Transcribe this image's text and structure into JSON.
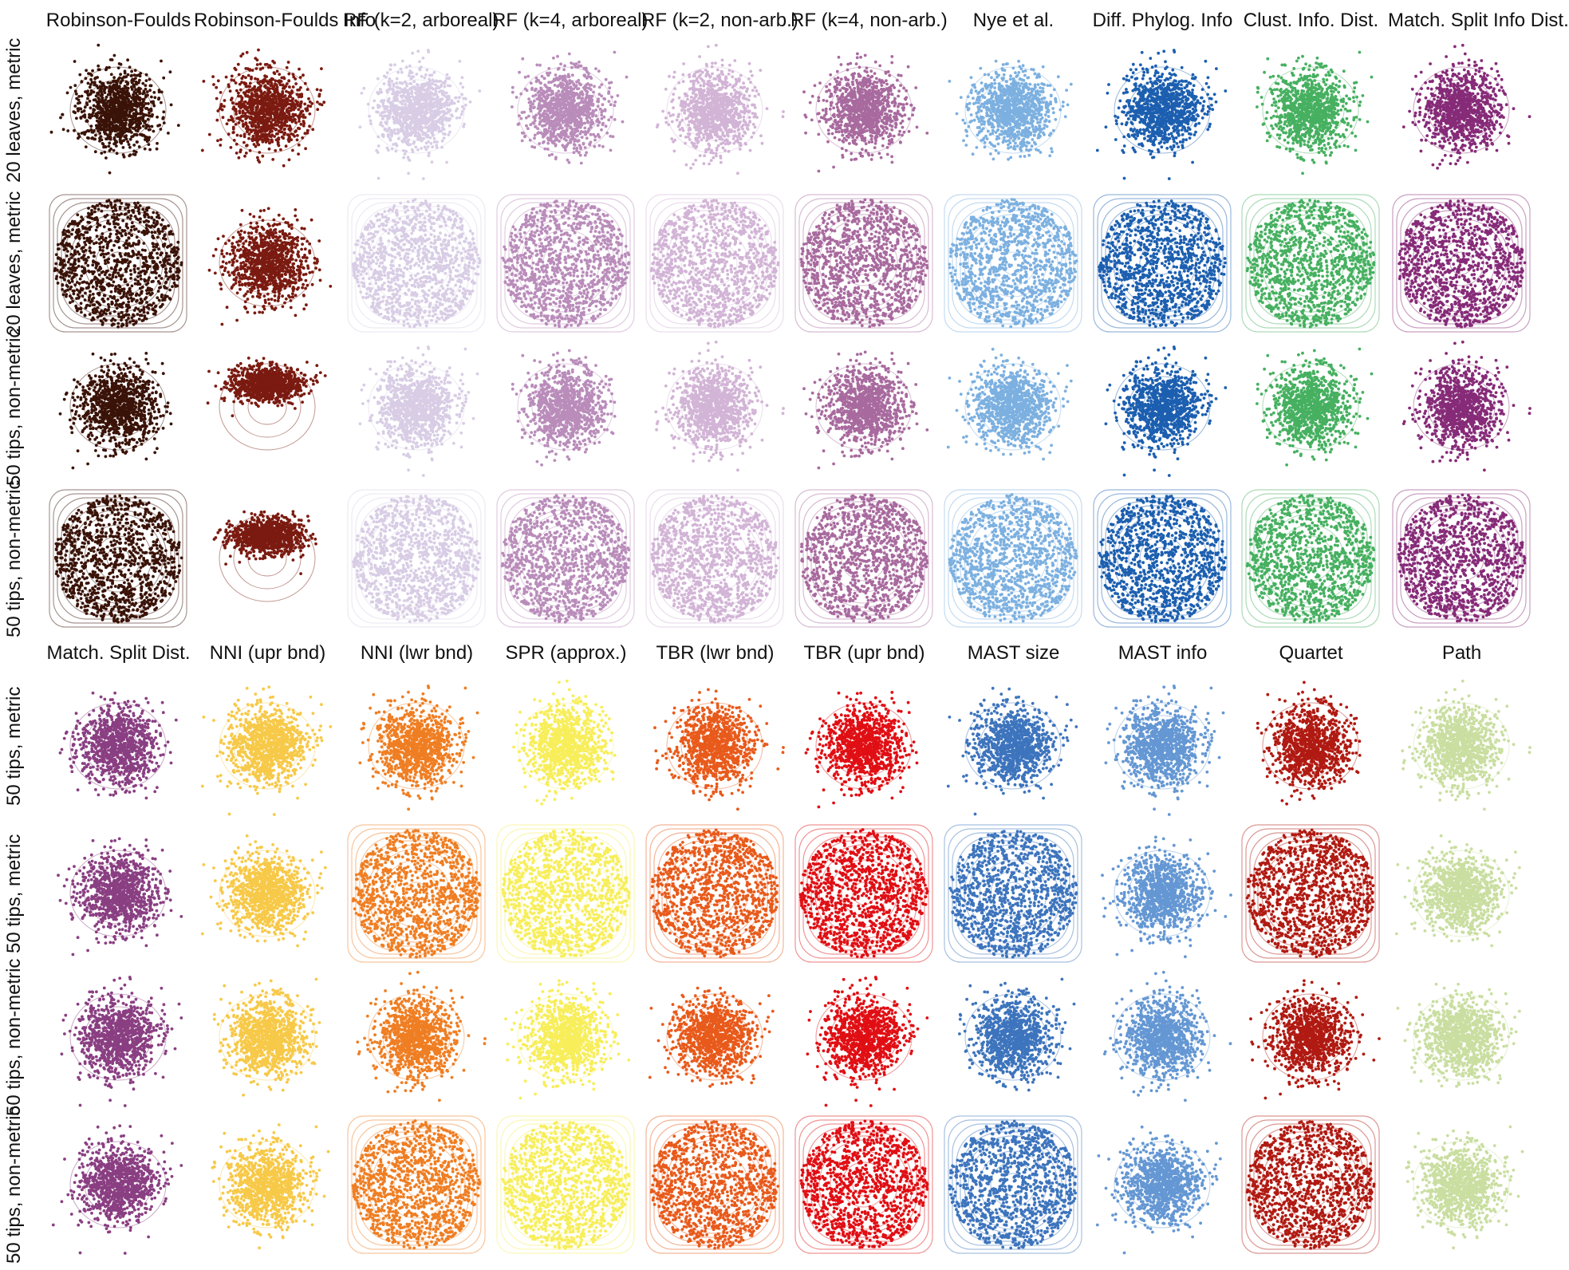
{
  "chart_data": {
    "type": "scatter",
    "top_block": {
      "column_titles": [
        "Robinson-Foulds",
        "Robinson-Foulds Info",
        "RF (k=2, arboreal)",
        "RF (k=4, arboreal)",
        "RF (k=2, non-arb.)",
        "RF (k=4, non-arb.)",
        "Nye et al.",
        "Diff. Phylog. Info",
        "Clust. Info. Dist.",
        "Match. Split Info Dist."
      ],
      "row_labels": [
        "20 leaves, metric",
        "20 leaves, metric",
        "50 tips, non-metric",
        "50 tips, non-metric"
      ],
      "colors": [
        "#3a1308",
        "#7a1a10",
        "#d8cde5",
        "#b98cba",
        "#d2b4d6",
        "#a86a9e",
        "#7cb0e0",
        "#1c5fb0",
        "#46b060",
        "#862b78"
      ],
      "cell_layout": [
        [
          "cloud",
          "cloud",
          "cloud",
          "cloud",
          "cloud",
          "cloud",
          "cloud",
          "cloud",
          "cloud",
          "cloud"
        ],
        [
          "disc",
          "cloud",
          "disc",
          "disc",
          "disc",
          "disc",
          "disc",
          "disc",
          "disc",
          "disc"
        ],
        [
          "cloud",
          "flat",
          "cloud",
          "cloud",
          "cloud",
          "cloud",
          "cloud",
          "cloud",
          "cloud",
          "cloud"
        ],
        [
          "disc",
          "flat",
          "disc",
          "disc",
          "disc",
          "disc",
          "disc",
          "disc",
          "disc",
          "disc"
        ]
      ]
    },
    "bottom_block": {
      "column_titles": [
        "Match. Split Dist.",
        "NNI (upr bnd)",
        "NNI (lwr bnd)",
        "SPR (approx.)",
        "TBR (lwr bnd)",
        "TBR (upr bnd)",
        "MAST size",
        "MAST info",
        "Quartet",
        "Path"
      ],
      "row_labels": [
        "50 tips, metric",
        "50 tips, metric",
        "50 tips, non-metric",
        "50 tips, non-metric"
      ],
      "colors": [
        "#8a3f82",
        "#f7c948",
        "#ef7e23",
        "#f7ee5a",
        "#e85a1b",
        "#e00f14",
        "#3d74bd",
        "#6497d3",
        "#b01a12",
        "#c9dea0"
      ],
      "cell_layout": [
        [
          "cloud",
          "cloud",
          "cloud",
          "cloud",
          "cloud",
          "cloud",
          "cloud",
          "cloud",
          "cloud",
          "cloud"
        ],
        [
          "cloud",
          "cloud",
          "disc",
          "disc",
          "disc",
          "disc",
          "disc",
          "cloud",
          "disc",
          "cloud"
        ],
        [
          "cloud",
          "cloud",
          "cloud",
          "cloud",
          "cloud",
          "cloud",
          "cloud",
          "cloud",
          "cloud",
          "cloud"
        ],
        [
          "cloud",
          "cloud",
          "disc",
          "disc",
          "disc",
          "disc",
          "disc",
          "cloud",
          "disc",
          "cloud"
        ]
      ]
    }
  }
}
